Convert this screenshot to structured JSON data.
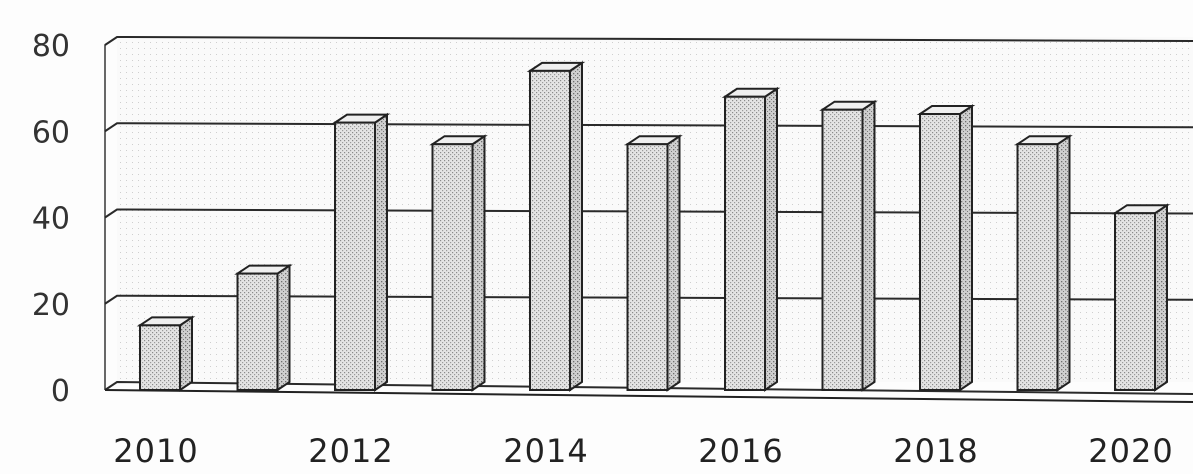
{
  "chart_data": {
    "type": "bar",
    "categories": [
      "2010",
      "2011",
      "2012",
      "2013",
      "2014",
      "2015",
      "2016",
      "2017",
      "2018",
      "2019",
      "2020"
    ],
    "values": [
      15,
      27,
      62,
      57,
      74,
      57,
      68,
      65,
      64,
      57,
      41
    ],
    "x_tick_labels": [
      "2010",
      "2012",
      "2014",
      "2016",
      "2018",
      "2020"
    ],
    "y_ticks": [
      0,
      20,
      40,
      60,
      80
    ],
    "ylim": [
      0,
      80
    ],
    "title": "",
    "xlabel": "",
    "ylabel": "",
    "grid": true,
    "style": "3d-bar",
    "colors": {
      "bar_fill": "#d9d9d9",
      "bar_side": "#bdbdbd",
      "bar_top": "#eeeeee",
      "grid": "#2a2a2a"
    }
  }
}
